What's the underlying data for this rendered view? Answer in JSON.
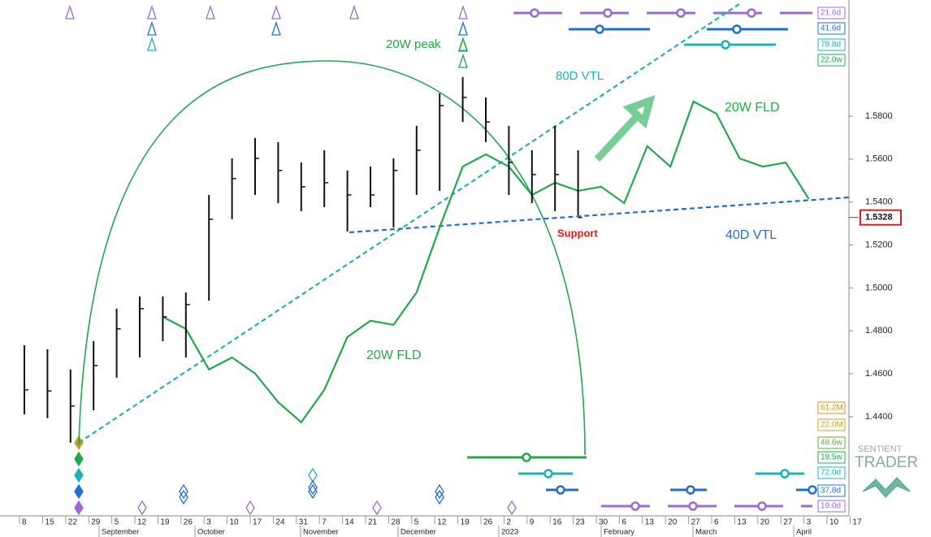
{
  "chart_data": {
    "type": "ohlc",
    "categories": [
      "8",
      "15",
      "22",
      "29",
      "5",
      "12",
      "19",
      "26",
      "3",
      "10",
      "17",
      "24",
      "31",
      "7",
      "14",
      "21",
      "28",
      "5",
      "12",
      "19",
      "26",
      "2",
      "9",
      "16",
      "23",
      "30",
      "6",
      "13",
      "20",
      "27",
      "6",
      "13",
      "20",
      "27",
      "3",
      "10",
      "17"
    ],
    "months": [
      "September",
      "October",
      "November",
      "December",
      "2023",
      "February",
      "March",
      "April"
    ],
    "high": [
      1.4733,
      1.4714,
      1.462,
      1.4752,
      1.4903,
      1.496,
      1.496,
      1.4979,
      1.5433,
      1.5603,
      1.5698,
      1.5679,
      1.5584,
      1.5641,
      1.5547,
      1.5565,
      1.5603,
      1.5755,
      1.5906,
      1.5982,
      1.5887,
      1.5755,
      1.5641,
      1.5755,
      1.5641,
      null,
      null,
      null,
      null,
      null,
      null,
      null,
      null,
      null,
      null,
      null,
      null
    ],
    "low": [
      1.4411,
      1.4393,
      1.4279,
      1.443,
      1.4582,
      1.4676,
      1.4752,
      1.4676,
      1.4941,
      1.532,
      1.5433,
      1.5395,
      1.5357,
      1.5376,
      1.5263,
      1.5376,
      1.5282,
      1.5433,
      1.5452,
      1.5773,
      1.5679,
      1.5433,
      1.5395,
      1.5357,
      1.5338,
      null,
      null,
      null,
      null,
      null,
      null,
      null,
      null,
      null,
      null,
      null,
      null
    ],
    "close": [
      1.4525,
      1.452,
      1.445,
      1.4638,
      1.4809,
      1.4903,
      1.4865,
      1.4922,
      1.532,
      1.5509,
      1.5603,
      1.5547,
      1.5471,
      1.549,
      1.5433,
      1.5433,
      1.5547,
      1.5641,
      1.5849,
      1.5887,
      1.5773,
      1.5584,
      1.5528,
      1.5528,
      1.5328,
      null,
      null,
      null,
      null,
      null,
      null,
      null,
      null,
      null,
      null,
      null,
      null
    ],
    "color": "#111111",
    "fld": {
      "color": "#22a84a",
      "values": [
        null,
        null,
        null,
        null,
        null,
        null,
        1.4865,
        1.4809,
        1.462,
        1.4676,
        1.4601,
        1.4468,
        1.4374,
        1.4525,
        1.4771,
        1.4847,
        1.4828,
        1.4979,
        1.5282,
        1.5565,
        1.5622,
        1.5565,
        1.5433,
        1.549,
        1.5452,
        1.5471,
        1.5395,
        1.566,
        1.5565,
        1.5868,
        1.5811,
        1.5603,
        1.5565,
        1.5584,
        1.5414,
        null,
        null
      ]
    },
    "ylim": [
      1.3938,
      1.6341
    ],
    "yticks": [
      {
        "value": 1.44,
        "label": "1.4400"
      },
      {
        "value": 1.46,
        "label": "1.4600"
      },
      {
        "value": 1.48,
        "label": "1.4800"
      },
      {
        "value": 1.5,
        "label": "1.5000"
      },
      {
        "value": 1.52,
        "label": "1.5200"
      },
      {
        "value": 1.54,
        "label": "1.5400"
      },
      {
        "value": 1.56,
        "label": "1.5600"
      },
      {
        "value": 1.58,
        "label": "1.5800"
      }
    ],
    "last_price": {
      "value": 1.5328,
      "label": "1.5328",
      "color": "#e01b1b"
    },
    "annotations": [
      {
        "text": "20W peak",
        "color": "#22a84a"
      },
      {
        "text": "80D VTL",
        "color": "#1fb0b8"
      },
      {
        "text": "20W FLD",
        "color": "#22a84a"
      },
      {
        "text": "20W FLD",
        "color": "#22a84a"
      },
      {
        "text": "Support",
        "color": "#e01b1b"
      },
      {
        "text": "40D VTL",
        "color": "#1f6fd1"
      }
    ],
    "cycle_labels": [
      {
        "label": "21.6d",
        "color": "#9b6ad6"
      },
      {
        "label": "41.6d",
        "color": "#1f6fd1"
      },
      {
        "label": "79.8d",
        "color": "#1fb0b8"
      },
      {
        "label": "22.0w",
        "color": "#22a84a"
      },
      {
        "label": "61.2M",
        "color": "#e0881e"
      },
      {
        "label": "22.0M",
        "color": "#c8a020"
      },
      {
        "label": "48.6w",
        "color": "#6aa83a"
      },
      {
        "label": "19.5w",
        "color": "#22a84a"
      },
      {
        "label": "72.0d",
        "color": "#1fb0b8"
      },
      {
        "label": "37.8d",
        "color": "#1f6fd1"
      },
      {
        "label": "19.0d",
        "color": "#9b6ad6"
      }
    ],
    "logo": {
      "line1": "SENTIENT",
      "line2": "TRADER"
    }
  }
}
